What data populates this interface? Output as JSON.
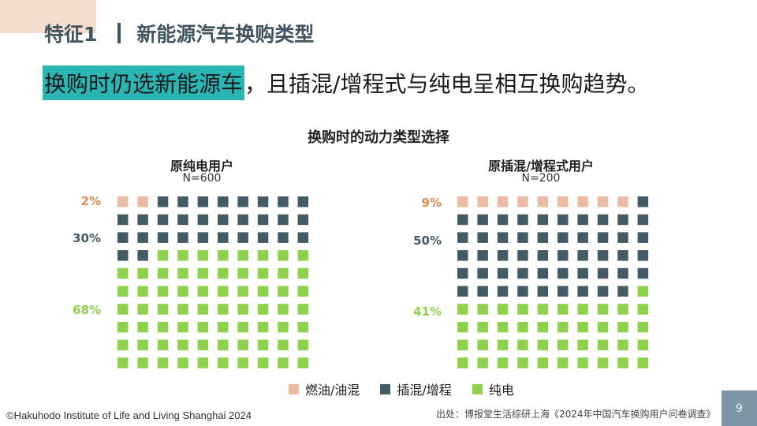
{
  "header": {
    "feature": "特征1",
    "title": "新能源汽车换购类型"
  },
  "headline": {
    "highlight": "换购时仍选新能源车",
    "rest": "，且插混/增程式与纯电呈相互换购趋势。"
  },
  "colors": {
    "ice": "#ecbba3",
    "phev": "#435b65",
    "bev": "#8dd14d",
    "accent": "#2bb5b5"
  },
  "chart_data": {
    "type": "waffle",
    "title": "换购时的动力类型选择",
    "legend": [
      "燃油/油混",
      "插混/增程",
      "纯电"
    ],
    "panels": [
      {
        "title": "原纯电用户",
        "n": "N=600",
        "categories": [
          "燃油/油混",
          "插混/增程",
          "纯电"
        ],
        "values": [
          2,
          30,
          68
        ],
        "labels": [
          "2%",
          "30%",
          "68%"
        ]
      },
      {
        "title": "原插混/增程式用户",
        "n": "N=200",
        "categories": [
          "燃油/油混",
          "插混/增程",
          "纯电"
        ],
        "values": [
          9,
          50,
          41
        ],
        "labels": [
          "9%",
          "50%",
          "41%"
        ]
      }
    ]
  },
  "footer": {
    "copyright": "©Hakuhodo Institute of Life and Living Shanghai 2024",
    "source": "出处：博报堂生活综研上海《2024年中国汽车换购用户问卷调查》",
    "page": "9"
  }
}
